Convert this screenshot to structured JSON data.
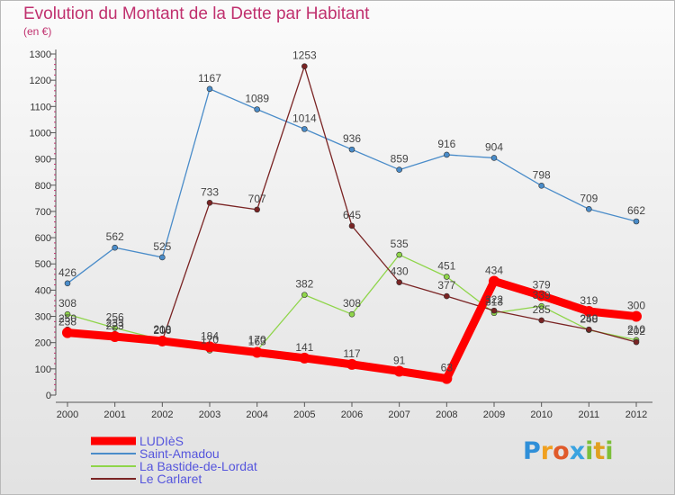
{
  "header": {
    "title": "Evolution du Montant de la Dette par Habitant",
    "subtitle": "(en €)"
  },
  "logo": {
    "text": "Proxiti",
    "colors": [
      "#2f8fd8",
      "#f0a020",
      "#e05a2a",
      "#3aa3e0",
      "#7cbf3a",
      "#e0a020",
      "#7cbf3a"
    ]
  },
  "chart_data": {
    "type": "line",
    "title": "Evolution du Montant de la Dette par Habitant",
    "subtitle": "(en €)",
    "xlabel": "",
    "ylabel": "",
    "x": [
      "2000",
      "2001",
      "2002",
      "2003",
      "2004",
      "2005",
      "2006",
      "2007",
      "2008",
      "2009",
      "2010",
      "2011",
      "2012"
    ],
    "ylim": [
      0,
      1300
    ],
    "yticks": [
      0,
      100,
      200,
      300,
      400,
      500,
      600,
      700,
      800,
      900,
      1000,
      1100,
      1200,
      1300
    ],
    "grid": false,
    "legend_position": "bottom-left",
    "series": [
      {
        "name": "LUDIèS",
        "color": "#ff0000",
        "values": [
          238,
          223,
          206,
          184,
          163,
          141,
          117,
          91,
          63,
          434,
          379,
          319,
          300
        ]
      },
      {
        "name": "Saint-Amadou",
        "color": "#4a8cc9",
        "values": [
          426,
          562,
          525,
          1167,
          1089,
          1014,
          936,
          859,
          916,
          904,
          798,
          709,
          662
        ]
      },
      {
        "name": "La Bastide-de-Lordat",
        "color": "#8fd54a",
        "values": [
          308,
          256,
          210,
          170,
          170,
          382,
          308,
          535,
          451,
          313,
          339,
          248,
          210
        ]
      },
      {
        "name": "Le Carlaret",
        "color": "#7a2424",
        "values": [
          250,
          233,
          208,
          733,
          707,
          1253,
          645,
          430,
          377,
          322,
          285,
          250,
          202
        ]
      }
    ]
  }
}
